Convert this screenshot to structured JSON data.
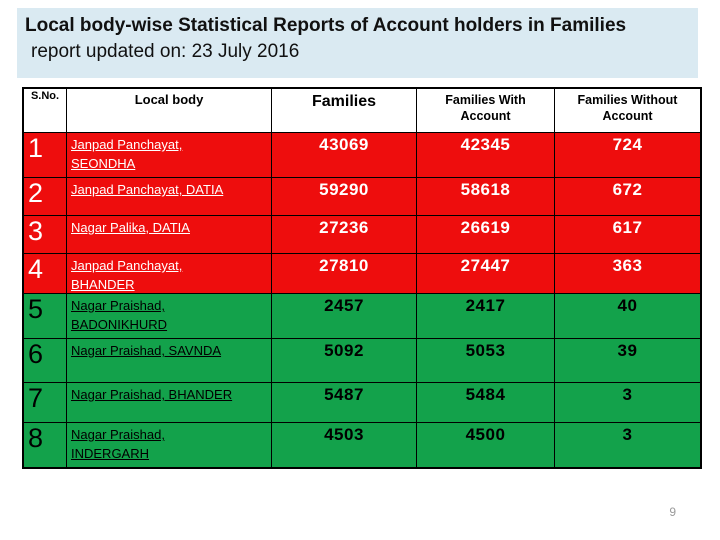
{
  "colors": {
    "title_bg": "#daeaf2",
    "row_red": "#ee0d0d",
    "row_green": "#13a24b"
  },
  "slide": {
    "title_line1": "Local body-wise Statistical Reports of Account holders in Families",
    "title_line2": "report updated on: 23 July 2016",
    "page_number": "9"
  },
  "table": {
    "headers": {
      "sno": "S.No.",
      "local_body": "Local body",
      "families": "Families",
      "with_account": "Families With Account",
      "without_account": "Families Without Account"
    },
    "rows": [
      {
        "sno": "1",
        "local_body": "Janpad Panchayat,\nSEONDHA",
        "families": "43069",
        "with_account": "42345",
        "without_account": "724",
        "color": "red"
      },
      {
        "sno": "2",
        "local_body": "Janpad Panchayat, DATIA",
        "families": "59290",
        "with_account": "58618",
        "without_account": "672",
        "color": "red"
      },
      {
        "sno": "3",
        "local_body": "Nagar Palika, DATIA",
        "families": "27236",
        "with_account": "26619",
        "without_account": "617",
        "color": "red"
      },
      {
        "sno": "4",
        "local_body": "Janpad Panchayat,\nBHANDER",
        "families": "27810",
        "with_account": "27447",
        "without_account": "363",
        "color": "red"
      },
      {
        "sno": "5",
        "local_body": "Nagar Praishad,\nBADONIKHURD",
        "families": "2457",
        "with_account": "2417",
        "without_account": "40",
        "color": "green"
      },
      {
        "sno": "6",
        "local_body": "Nagar Praishad, SAVNDA",
        "families": "5092",
        "with_account": "5053",
        "without_account": "39",
        "color": "green"
      },
      {
        "sno": "7",
        "local_body": "Nagar Praishad, BHANDER",
        "families": "5487",
        "with_account": "5484",
        "without_account": "3",
        "color": "green"
      },
      {
        "sno": "8",
        "local_body": "Nagar Praishad,\nINDERGARH",
        "families": "4503",
        "with_account": "4500",
        "without_account": "3",
        "color": "green"
      }
    ]
  }
}
